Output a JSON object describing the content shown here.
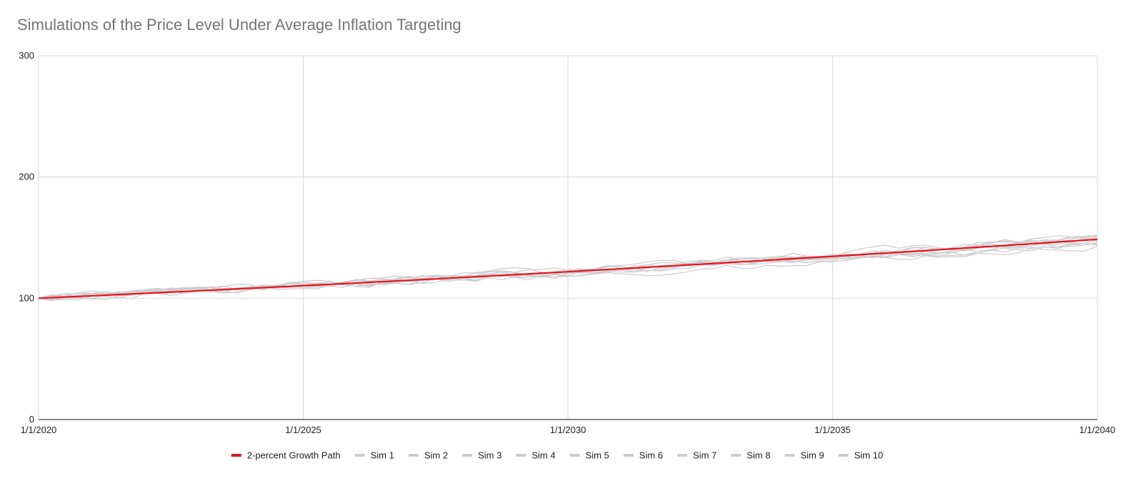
{
  "chart_data": {
    "type": "line",
    "title": "Simulations of the Price Level Under Average Inflation Targeting",
    "xlabel": "",
    "ylabel": "",
    "x_range": [
      "1/1/2020",
      "1/1/2040"
    ],
    "x_ticks": [
      "1/1/2020",
      "1/1/2025",
      "1/1/2030",
      "1/1/2035",
      "1/1/2040"
    ],
    "ylim": [
      0,
      300
    ],
    "y_ticks": [
      0,
      100,
      200,
      300
    ],
    "grid": true,
    "legend_position": "bottom",
    "frequency": "quarterly",
    "series": [
      {
        "name": "2-percent Growth Path",
        "color": "#e8141c",
        "start": 100,
        "annual_growth": 0.02
      },
      {
        "name": "Sim 1",
        "color": "#cccccc",
        "end": 149
      },
      {
        "name": "Sim 2",
        "color": "#cccccc",
        "end": 144
      },
      {
        "name": "Sim 3",
        "color": "#cccccc",
        "end": 152
      },
      {
        "name": "Sim 4",
        "color": "#cccccc",
        "end": 146
      },
      {
        "name": "Sim 5",
        "color": "#cccccc",
        "end": 143
      },
      {
        "name": "Sim 6",
        "color": "#cccccc",
        "end": 150
      },
      {
        "name": "Sim 7",
        "color": "#cccccc",
        "end": 147
      },
      {
        "name": "Sim 8",
        "color": "#cccccc",
        "end": 145
      },
      {
        "name": "Sim 9",
        "color": "#cccccc",
        "end": 151
      },
      {
        "name": "Sim 10",
        "color": "#cccccc",
        "end": 148
      }
    ]
  }
}
